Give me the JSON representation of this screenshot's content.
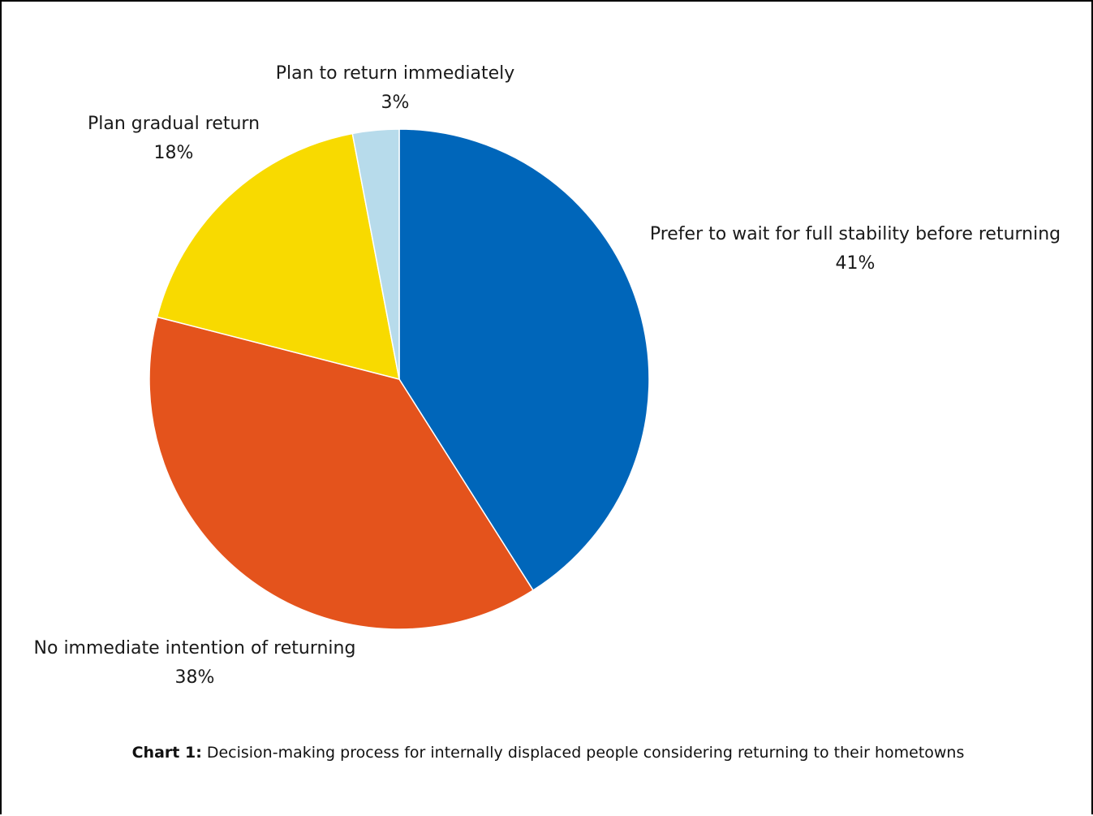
{
  "chart_data": {
    "type": "pie",
    "categories": [
      "Prefer to wait for full stability before returning",
      "No immediate intention of returning",
      "Plan gradual return",
      "Plan to return immediately"
    ],
    "values": [
      41,
      38,
      18,
      3
    ],
    "value_labels": [
      "41%",
      "38%",
      "18%",
      "3%"
    ],
    "colors": [
      "#0066BA",
      "#E4531C",
      "#F8DA00",
      "#B7DBEB"
    ],
    "start_angle": "12 o'clock",
    "direction": "clockwise",
    "legend": "none (labels next to slices)"
  },
  "caption": {
    "label": "Chart 1:",
    "text": " Decision-making process for internally displaced people considering returning to their hometowns"
  }
}
